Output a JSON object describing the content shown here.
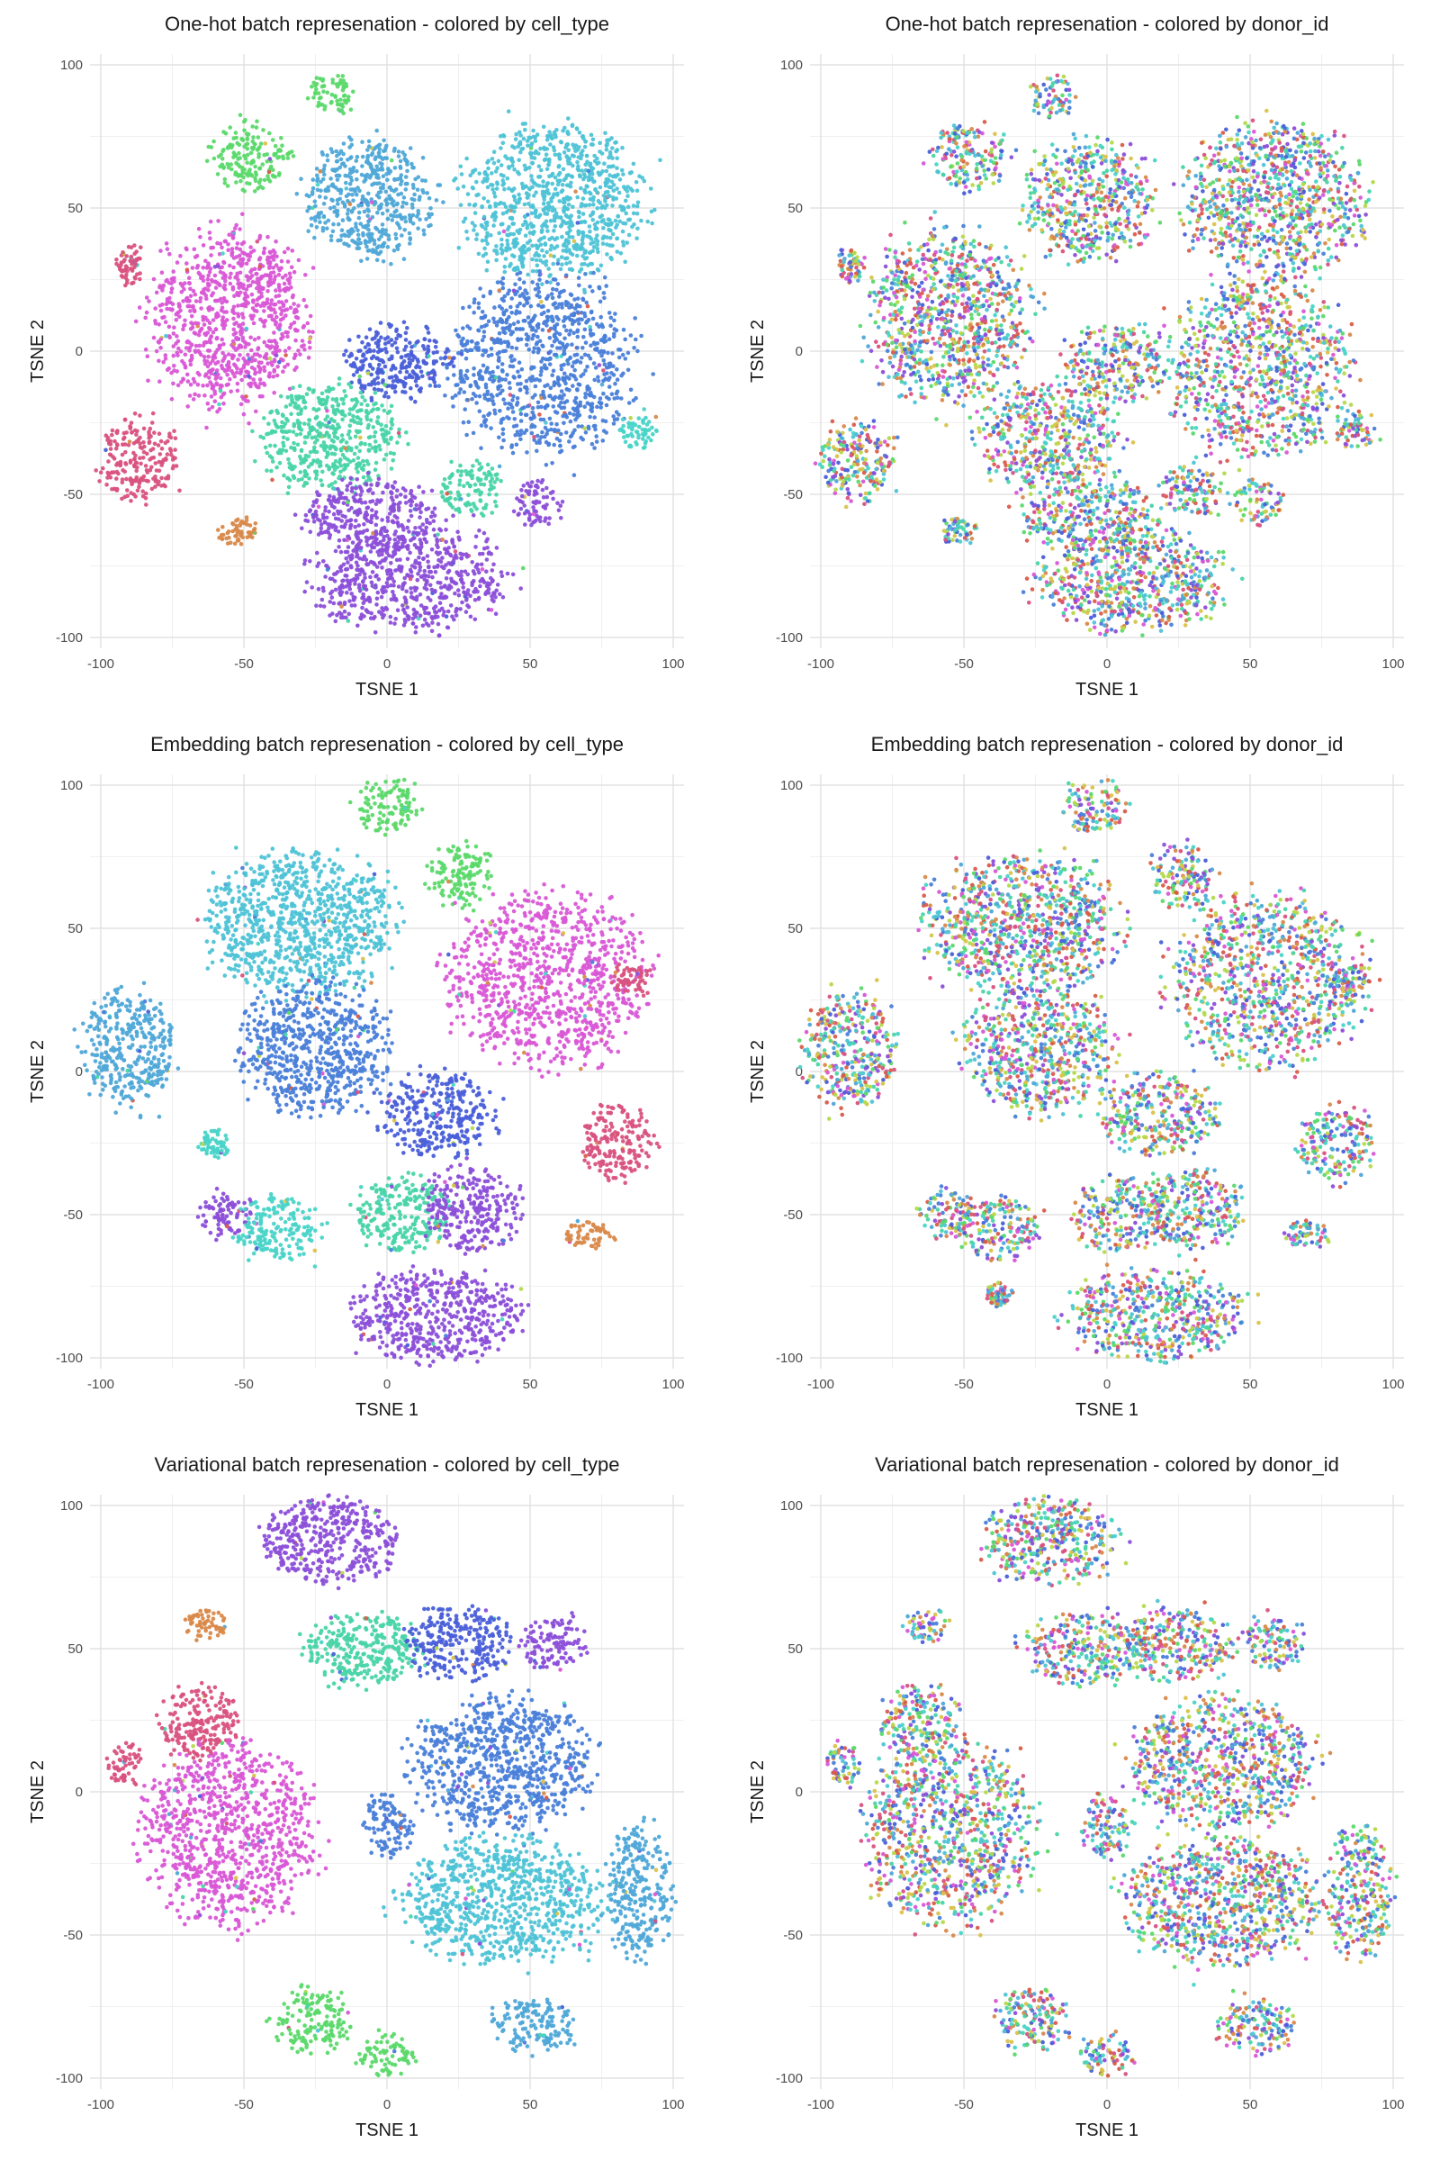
{
  "chart_data": [
    {
      "type": "scatter",
      "title": "One-hot batch represenation - colored by cell_type",
      "xlabel": "TSNE 1",
      "ylabel": "TSNE 2",
      "xlim": [
        -100,
        100
      ],
      "ylim": [
        -100,
        100
      ],
      "xticks": [
        "-100",
        "-50",
        "0",
        "50",
        "100"
      ],
      "yticks": [
        "-100",
        "-50",
        "0",
        "50",
        "100"
      ],
      "grid": true,
      "color_by": "cell_type",
      "clusters": [
        {
          "x": -19,
          "y": 89,
          "rx": 9,
          "ry": 8,
          "color": "#5bd96a"
        },
        {
          "x": -48,
          "y": 68,
          "rx": 15,
          "ry": 12,
          "color": "#5bd96a"
        },
        {
          "x": -6,
          "y": 53,
          "rx": 24,
          "ry": 22,
          "color": "#4fa8d8"
        },
        {
          "x": 58,
          "y": 52,
          "rx": 34,
          "ry": 28,
          "color": "#4ec3d6"
        },
        {
          "x": -55,
          "y": 12,
          "rx": 30,
          "ry": 32,
          "color": "#d957d6"
        },
        {
          "x": -90,
          "y": 30,
          "rx": 5,
          "ry": 7,
          "color": "#d9527f"
        },
        {
          "x": 54,
          "y": -5,
          "rx": 34,
          "ry": 34,
          "color": "#4a7fd9"
        },
        {
          "x": 4,
          "y": -4,
          "rx": 20,
          "ry": 14,
          "color": "#4a5fd9"
        },
        {
          "x": -20,
          "y": -30,
          "rx": 26,
          "ry": 20,
          "color": "#49d4a8"
        },
        {
          "x": 30,
          "y": -48,
          "rx": 12,
          "ry": 10,
          "color": "#49d4a8"
        },
        {
          "x": -87,
          "y": -38,
          "rx": 14,
          "ry": 16,
          "color": "#d9527f"
        },
        {
          "x": -52,
          "y": -63,
          "rx": 7,
          "ry": 5,
          "color": "#d9894a"
        },
        {
          "x": -6,
          "y": -57,
          "rx": 26,
          "ry": 13,
          "color": "#8c4fd9"
        },
        {
          "x": 53,
          "y": -53,
          "rx": 9,
          "ry": 9,
          "color": "#8c4fd9"
        },
        {
          "x": 8,
          "y": -80,
          "rx": 36,
          "ry": 19,
          "color": "#8c4fd9"
        },
        {
          "x": 88,
          "y": -28,
          "rx": 7,
          "ry": 7,
          "color": "#49d4c8"
        }
      ]
    },
    {
      "type": "scatter",
      "title": "One-hot batch represenation - colored by donor_id",
      "xlabel": "TSNE 1",
      "ylabel": "TSNE 2",
      "xlim": [
        -100,
        100
      ],
      "ylim": [
        -100,
        100
      ],
      "xticks": [
        "-100",
        "-50",
        "0",
        "50",
        "100"
      ],
      "yticks": [
        "-100",
        "-50",
        "0",
        "50",
        "100"
      ],
      "grid": true,
      "color_by": "donor_id",
      "clusters": [
        {
          "x": -19,
          "y": 89,
          "rx": 9,
          "ry": 8
        },
        {
          "x": -48,
          "y": 68,
          "rx": 15,
          "ry": 12
        },
        {
          "x": -6,
          "y": 53,
          "rx": 24,
          "ry": 22
        },
        {
          "x": 58,
          "y": 52,
          "rx": 34,
          "ry": 28
        },
        {
          "x": -55,
          "y": 12,
          "rx": 30,
          "ry": 32
        },
        {
          "x": -90,
          "y": 30,
          "rx": 5,
          "ry": 7
        },
        {
          "x": 54,
          "y": -5,
          "rx": 34,
          "ry": 34
        },
        {
          "x": 4,
          "y": -4,
          "rx": 20,
          "ry": 14
        },
        {
          "x": -20,
          "y": -30,
          "rx": 26,
          "ry": 20
        },
        {
          "x": 30,
          "y": -48,
          "rx": 12,
          "ry": 10
        },
        {
          "x": -87,
          "y": -38,
          "rx": 14,
          "ry": 16
        },
        {
          "x": -52,
          "y": -63,
          "rx": 7,
          "ry": 5
        },
        {
          "x": -6,
          "y": -57,
          "rx": 26,
          "ry": 13
        },
        {
          "x": 53,
          "y": -53,
          "rx": 9,
          "ry": 9
        },
        {
          "x": 8,
          "y": -80,
          "rx": 36,
          "ry": 19
        },
        {
          "x": 88,
          "y": -28,
          "rx": 7,
          "ry": 7
        }
      ]
    },
    {
      "type": "scatter",
      "title": "Embedding batch represenation - colored by cell_type",
      "xlabel": "TSNE 1",
      "ylabel": "TSNE 2",
      "xlim": [
        -100,
        100
      ],
      "ylim": [
        -100,
        100
      ],
      "xticks": [
        "-100",
        "-50",
        "0",
        "50",
        "100"
      ],
      "yticks": [
        "-100",
        "-50",
        "0",
        "50",
        "100"
      ],
      "grid": true,
      "color_by": "cell_type",
      "clusters": [
        {
          "x": 0,
          "y": 93,
          "rx": 12,
          "ry": 10,
          "color": "#5bd96a"
        },
        {
          "x": 26,
          "y": 68,
          "rx": 12,
          "ry": 12,
          "color": "#5bd96a"
        },
        {
          "x": -30,
          "y": 52,
          "rx": 36,
          "ry": 26,
          "color": "#4ec3d6"
        },
        {
          "x": -90,
          "y": 8,
          "rx": 17,
          "ry": 22,
          "color": "#4fa8d8"
        },
        {
          "x": -25,
          "y": 8,
          "rx": 28,
          "ry": 24,
          "color": "#4a7fd9"
        },
        {
          "x": 18,
          "y": -15,
          "rx": 22,
          "ry": 15,
          "color": "#4a5fd9"
        },
        {
          "x": 56,
          "y": 32,
          "rx": 36,
          "ry": 32,
          "color": "#d957d6"
        },
        {
          "x": 80,
          "y": -25,
          "rx": 14,
          "ry": 14,
          "color": "#d9527f"
        },
        {
          "x": 85,
          "y": 32,
          "rx": 8,
          "ry": 6,
          "color": "#d9527f"
        },
        {
          "x": -57,
          "y": -50,
          "rx": 10,
          "ry": 9,
          "color": "#8c4fd9"
        },
        {
          "x": -38,
          "y": -55,
          "rx": 16,
          "ry": 12,
          "color": "#49d4c8"
        },
        {
          "x": 5,
          "y": -50,
          "rx": 18,
          "ry": 14,
          "color": "#49d4a8"
        },
        {
          "x": 30,
          "y": -48,
          "rx": 18,
          "ry": 16,
          "color": "#8c4fd9"
        },
        {
          "x": 18,
          "y": -85,
          "rx": 32,
          "ry": 17,
          "color": "#8c4fd9"
        },
        {
          "x": 70,
          "y": -57,
          "rx": 9,
          "ry": 5,
          "color": "#d9894a"
        },
        {
          "x": -60,
          "y": -25,
          "rx": 6,
          "ry": 5,
          "color": "#49d4c8"
        }
      ]
    },
    {
      "type": "scatter",
      "title": "Embedding batch represenation - colored by donor_id",
      "xlabel": "TSNE 1",
      "ylabel": "TSNE 2",
      "xlim": [
        -100,
        100
      ],
      "ylim": [
        -100,
        100
      ],
      "xticks": [
        "-100",
        "-50",
        "0",
        "50",
        "100"
      ],
      "yticks": [
        "-100",
        "-50",
        "0",
        "50",
        "100"
      ],
      "grid": true,
      "color_by": "donor_id",
      "clusters": [
        {
          "x": -4,
          "y": 93,
          "rx": 12,
          "ry": 10
        },
        {
          "x": 26,
          "y": 68,
          "rx": 12,
          "ry": 12
        },
        {
          "x": -30,
          "y": 52,
          "rx": 36,
          "ry": 26
        },
        {
          "x": -90,
          "y": 8,
          "rx": 17,
          "ry": 22
        },
        {
          "x": -25,
          "y": 8,
          "rx": 28,
          "ry": 24
        },
        {
          "x": 18,
          "y": -15,
          "rx": 22,
          "ry": 15
        },
        {
          "x": 56,
          "y": 32,
          "rx": 36,
          "ry": 32
        },
        {
          "x": 80,
          "y": -25,
          "rx": 14,
          "ry": 14
        },
        {
          "x": 85,
          "y": 32,
          "rx": 8,
          "ry": 6
        },
        {
          "x": -57,
          "y": -50,
          "rx": 10,
          "ry": 9
        },
        {
          "x": -38,
          "y": -55,
          "rx": 16,
          "ry": 12
        },
        {
          "x": 5,
          "y": -50,
          "rx": 18,
          "ry": 14
        },
        {
          "x": 30,
          "y": -48,
          "rx": 18,
          "ry": 16
        },
        {
          "x": 18,
          "y": -85,
          "rx": 32,
          "ry": 17
        },
        {
          "x": 70,
          "y": -57,
          "rx": 9,
          "ry": 5
        },
        {
          "x": -38,
          "y": -78,
          "rx": 5,
          "ry": 4
        }
      ]
    },
    {
      "type": "scatter",
      "title": "Variational batch represenation - colored by cell_type",
      "xlabel": "TSNE 1",
      "ylabel": "TSNE 2",
      "xlim": [
        -100,
        100
      ],
      "ylim": [
        -100,
        100
      ],
      "xticks": [
        "-100",
        "-50",
        "0",
        "50",
        "100"
      ],
      "yticks": [
        "-100",
        "-50",
        "0",
        "50",
        "100"
      ],
      "grid": true,
      "color_by": "cell_type",
      "clusters": [
        {
          "x": -20,
          "y": 88,
          "rx": 26,
          "ry": 16,
          "color": "#8c4fd9"
        },
        {
          "x": -8,
          "y": 50,
          "rx": 22,
          "ry": 14,
          "color": "#49d4a8"
        },
        {
          "x": 25,
          "y": 52,
          "rx": 20,
          "ry": 14,
          "color": "#4a5fd9"
        },
        {
          "x": 58,
          "y": 52,
          "rx": 12,
          "ry": 10,
          "color": "#8c4fd9"
        },
        {
          "x": -63,
          "y": 58,
          "rx": 8,
          "ry": 6,
          "color": "#d9894a"
        },
        {
          "x": -65,
          "y": 25,
          "rx": 15,
          "ry": 14,
          "color": "#d9527f"
        },
        {
          "x": -92,
          "y": 10,
          "rx": 7,
          "ry": 8,
          "color": "#d9527f"
        },
        {
          "x": -55,
          "y": -15,
          "rx": 32,
          "ry": 34,
          "color": "#d957d6"
        },
        {
          "x": 40,
          "y": 10,
          "rx": 34,
          "ry": 24,
          "color": "#4a7fd9"
        },
        {
          "x": 0,
          "y": -12,
          "rx": 10,
          "ry": 12,
          "color": "#4a7fd9"
        },
        {
          "x": 40,
          "y": -38,
          "rx": 36,
          "ry": 24,
          "color": "#4ec3d6"
        },
        {
          "x": 88,
          "y": -35,
          "rx": 12,
          "ry": 25,
          "color": "#4fa8d8"
        },
        {
          "x": 52,
          "y": -82,
          "rx": 16,
          "ry": 10,
          "color": "#4fa8d8"
        },
        {
          "x": -26,
          "y": -80,
          "rx": 14,
          "ry": 12,
          "color": "#5bd96a"
        },
        {
          "x": 0,
          "y": -92,
          "rx": 10,
          "ry": 8,
          "color": "#5bd96a"
        }
      ]
    },
    {
      "type": "scatter",
      "title": "Variational batch represenation - colored by donor_id",
      "xlabel": "TSNE 1",
      "ylabel": "TSNE 2",
      "xlim": [
        -100,
        100
      ],
      "ylim": [
        -100,
        100
      ],
      "xticks": [
        "-100",
        "-50",
        "0",
        "50",
        "100"
      ],
      "yticks": [
        "-100",
        "-50",
        "0",
        "50",
        "100"
      ],
      "grid": true,
      "color_by": "donor_id",
      "clusters": [
        {
          "x": -20,
          "y": 88,
          "rx": 26,
          "ry": 16
        },
        {
          "x": -8,
          "y": 50,
          "rx": 22,
          "ry": 14
        },
        {
          "x": 25,
          "y": 52,
          "rx": 20,
          "ry": 14
        },
        {
          "x": 58,
          "y": 52,
          "rx": 12,
          "ry": 10
        },
        {
          "x": -63,
          "y": 58,
          "rx": 8,
          "ry": 6
        },
        {
          "x": -65,
          "y": 25,
          "rx": 15,
          "ry": 14
        },
        {
          "x": -92,
          "y": 10,
          "rx": 7,
          "ry": 8
        },
        {
          "x": -55,
          "y": -15,
          "rx": 32,
          "ry": 34
        },
        {
          "x": 40,
          "y": 10,
          "rx": 34,
          "ry": 24
        },
        {
          "x": 0,
          "y": -12,
          "rx": 10,
          "ry": 12
        },
        {
          "x": 40,
          "y": -38,
          "rx": 36,
          "ry": 24
        },
        {
          "x": 88,
          "y": -35,
          "rx": 12,
          "ry": 25
        },
        {
          "x": 52,
          "y": -82,
          "rx": 16,
          "ry": 10
        },
        {
          "x": -26,
          "y": -80,
          "rx": 14,
          "ry": 12
        },
        {
          "x": 0,
          "y": -92,
          "rx": 10,
          "ry": 8
        }
      ]
    }
  ],
  "palette": {
    "donor_colors": [
      "#d957d6",
      "#8c4fd9",
      "#4a5fd9",
      "#4a7fd9",
      "#4fa8d8",
      "#4ec3d6",
      "#49d4c8",
      "#49d4a8",
      "#5bd96a",
      "#b5d94a",
      "#d9c24a",
      "#d9894a",
      "#d95c4a",
      "#d9527f"
    ],
    "gridline": "#ebebeb",
    "text": "#1a1a1a",
    "tick_text": "#4d4d4d"
  }
}
